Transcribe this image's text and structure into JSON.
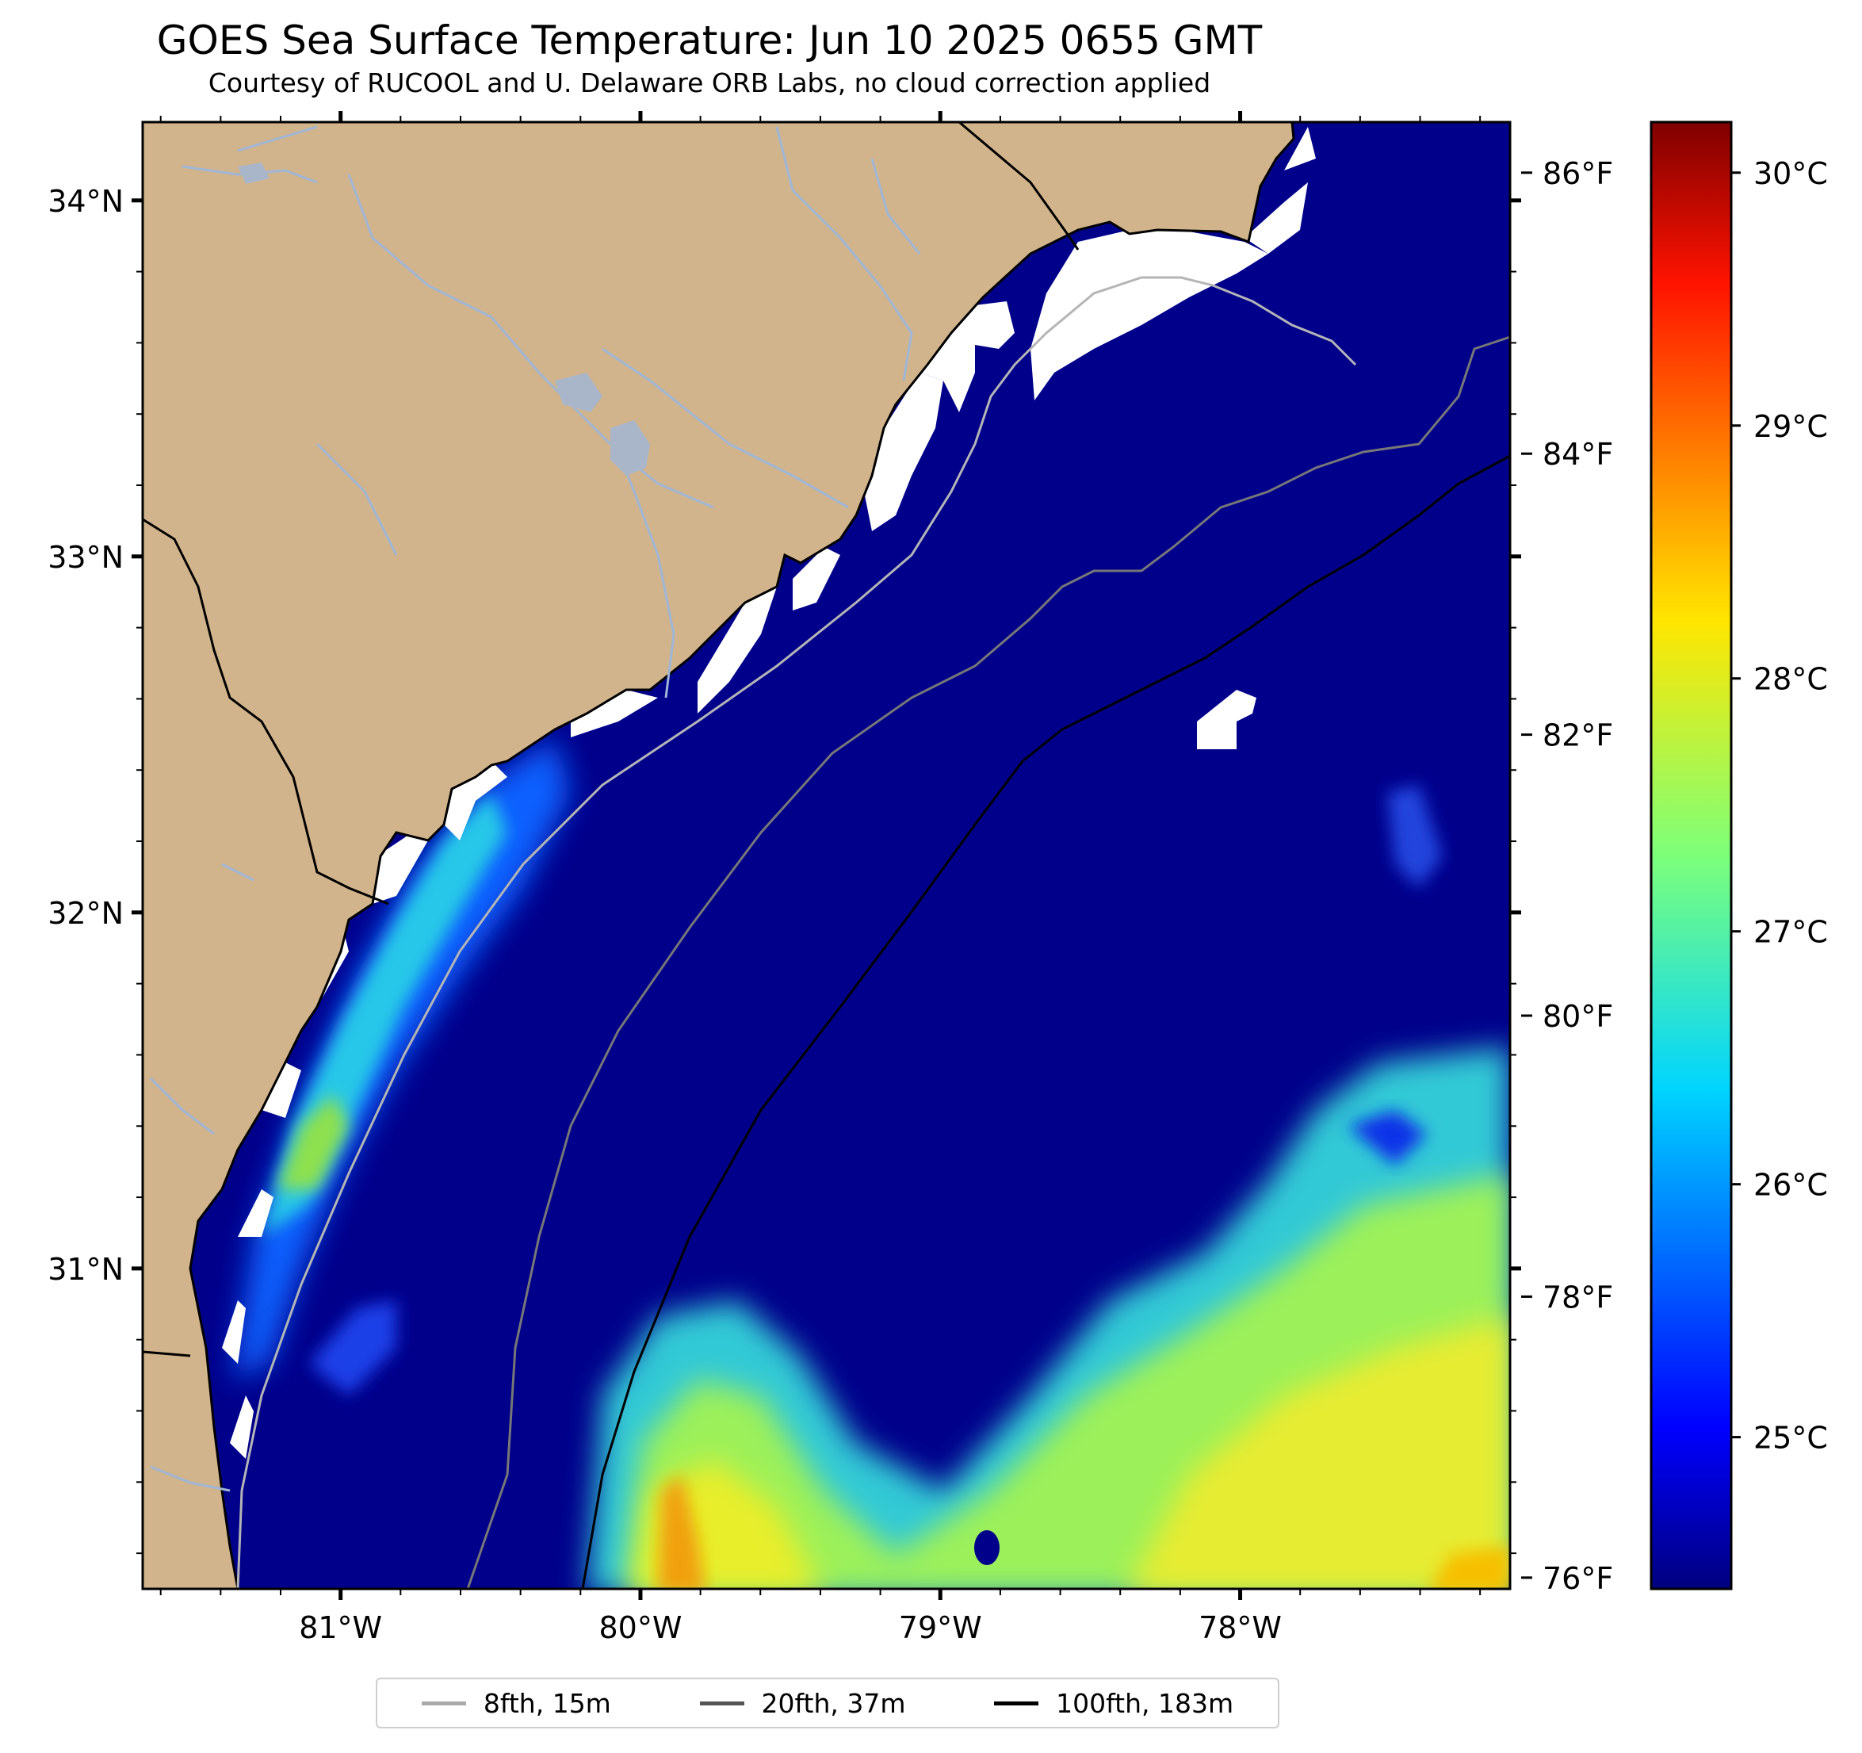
{
  "title": "GOES Sea Surface Temperature: Jun 10 2025 0655 GMT",
  "subtitle": "Courtesy of RUCOOL and U. Delaware ORB Labs, no cloud correction applied",
  "map": {
    "lon_range": [
      -81.66,
      -77.1
    ],
    "lat_range": [
      30.1,
      34.22
    ],
    "lon_ticks": [
      {
        "value": -81,
        "label": "81°W"
      },
      {
        "value": -80,
        "label": "80°W"
      },
      {
        "value": -79,
        "label": "79°W"
      },
      {
        "value": -78,
        "label": "78°W"
      }
    ],
    "lat_ticks": [
      {
        "value": 34,
        "label": "34°N"
      },
      {
        "value": 33,
        "label": "33°N"
      },
      {
        "value": 32,
        "label": "32°N"
      },
      {
        "value": 31,
        "label": "31°N"
      }
    ],
    "colors": {
      "land": "#d2b48c",
      "ocean_cold": "#00008b",
      "cloud_mask": "#ffffff",
      "rivers": "#a0b8d8",
      "isobath_8fth": "#b0b0b0",
      "isobath_20fth": "#707070",
      "isobath_100fth": "#000000"
    }
  },
  "colorbar": {
    "colormap": "jet",
    "celsius": [
      {
        "value": 25,
        "label": "25°C"
      },
      {
        "value": 26,
        "label": "26°C"
      },
      {
        "value": 27,
        "label": "27°C"
      },
      {
        "value": 28,
        "label": "28°C"
      },
      {
        "value": 29,
        "label": "29°C"
      },
      {
        "value": 30,
        "label": "30°C"
      }
    ],
    "fahrenheit": [
      {
        "value": 76,
        "label": "76°F"
      },
      {
        "value": 78,
        "label": "78°F"
      },
      {
        "value": 80,
        "label": "80°F"
      },
      {
        "value": 82,
        "label": "82°F"
      },
      {
        "value": 84,
        "label": "84°F"
      },
      {
        "value": 86,
        "label": "86°F"
      }
    ],
    "celsius_range": [
      24.4,
      30.2
    ]
  },
  "legend": {
    "items": [
      {
        "label": "8fth, 15m",
        "color": "#aaaaaa"
      },
      {
        "label": "20fth, 37m",
        "color": "#555555"
      },
      {
        "label": "100fth, 183m",
        "color": "#000000"
      }
    ]
  }
}
